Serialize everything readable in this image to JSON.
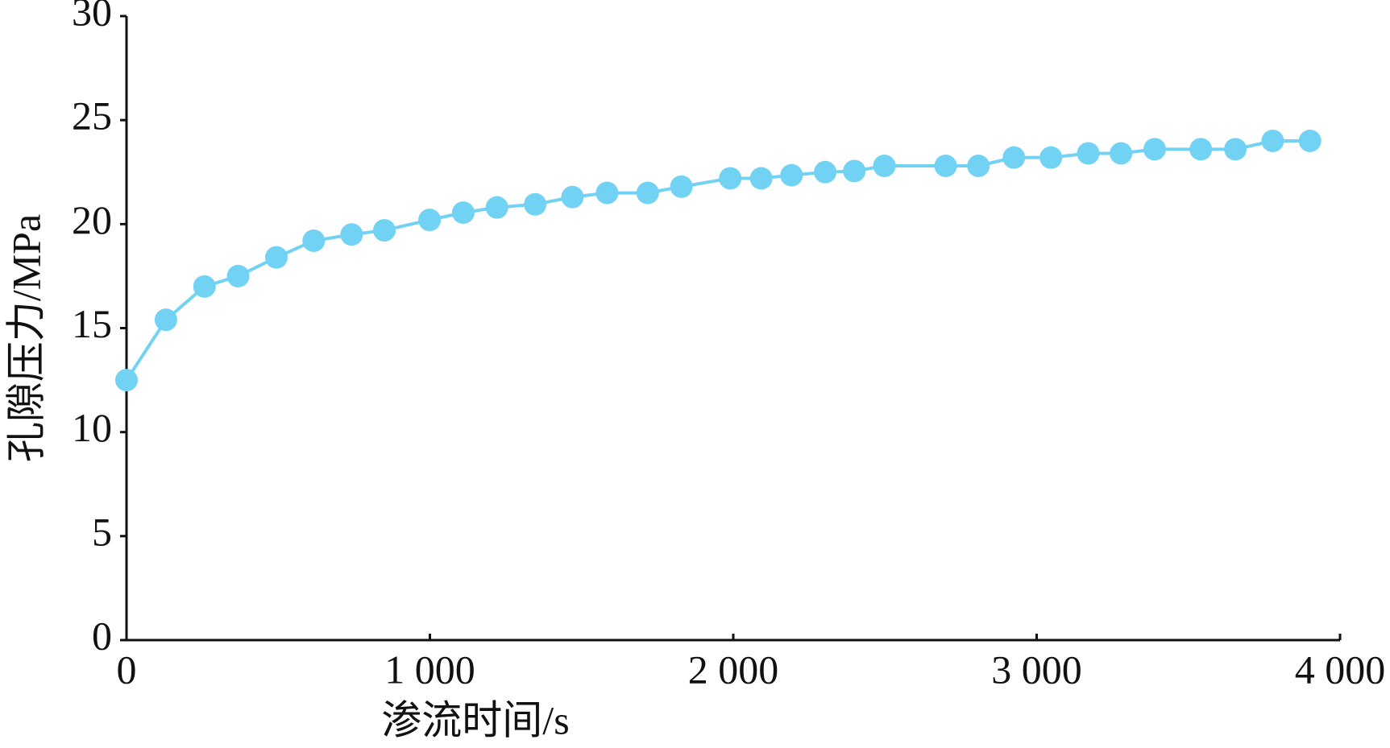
{
  "chart_data": {
    "type": "line",
    "xlabel": "渗流时间/s",
    "ylabel": "孔隙压力/MPa",
    "x": [
      0,
      130,
      257,
      368,
      494,
      617,
      742,
      850,
      999,
      1110,
      1221,
      1347,
      1470,
      1584,
      1718,
      1829,
      1990,
      2092,
      2192,
      2303,
      2399,
      2498,
      2700,
      2808,
      2925,
      3047,
      3170,
      3278,
      3389,
      3541,
      3655,
      3778,
      3901
    ],
    "series": [
      {
        "color": "#72d2f4",
        "values": [
          12.5,
          15.4,
          17.0,
          17.5,
          18.4,
          19.2,
          19.5,
          19.7,
          20.2,
          20.55,
          20.8,
          20.95,
          21.3,
          21.5,
          21.5,
          21.8,
          22.2,
          22.2,
          22.35,
          22.5,
          22.55,
          22.8,
          22.8,
          22.8,
          23.2,
          23.2,
          23.4,
          23.4,
          23.6,
          23.6,
          23.6,
          24.0,
          24.0
        ]
      }
    ],
    "xlim": [
      0,
      4000
    ],
    "ylim": [
      0,
      30
    ],
    "xticks": [
      0,
      {
        "value": 1000,
        "label": "1 000"
      },
      {
        "value": 2000,
        "label": "2 000"
      },
      {
        "value": 3000,
        "label": "3 000"
      },
      {
        "value": 4000,
        "label": "4 000"
      }
    ],
    "yticks": [
      0,
      5,
      10,
      15,
      20,
      25,
      30
    ],
    "grid": false
  }
}
